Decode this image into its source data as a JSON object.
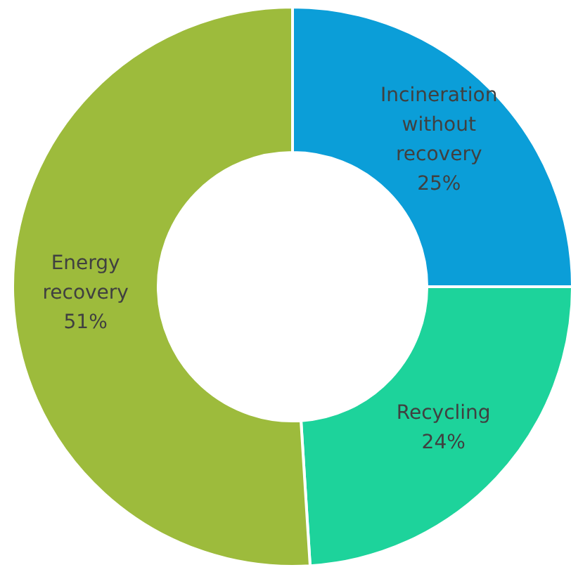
{
  "chart_data": {
    "type": "donut",
    "categories": [
      "Incineration without recovery",
      "Recycling",
      "Energy recovery"
    ],
    "values": [
      25,
      24,
      51
    ],
    "colors": [
      "#0b9ed8",
      "#1dd39b",
      "#9dbb3c"
    ],
    "value_labels": [
      "25%",
      "24%",
      "51%"
    ]
  }
}
